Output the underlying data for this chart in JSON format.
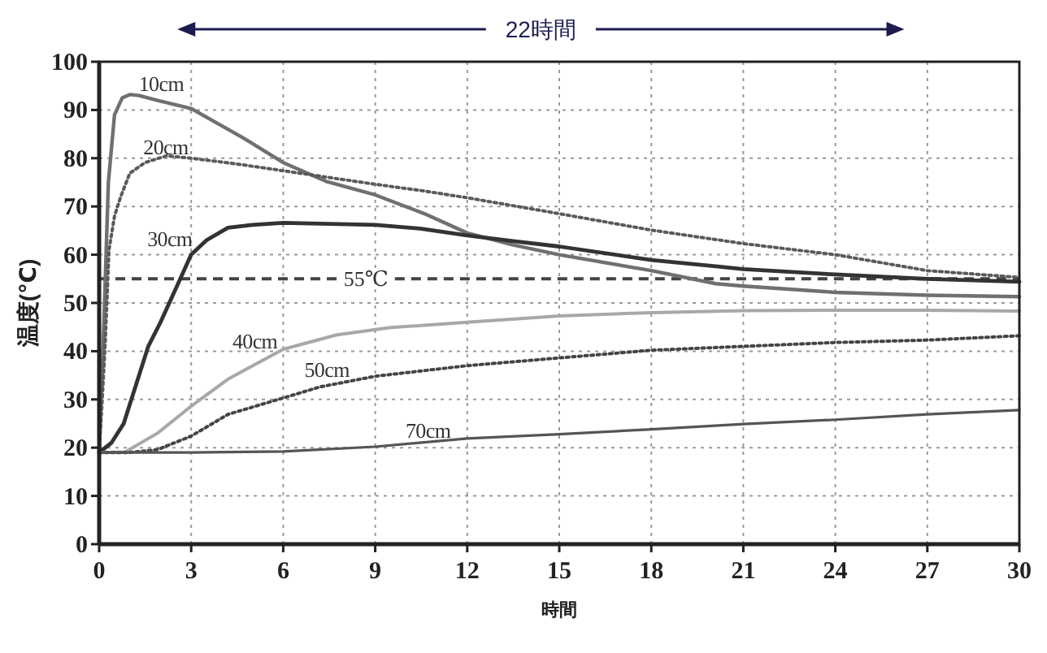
{
  "chart_data": {
    "type": "line",
    "xlabel": "時間",
    "ylabel": "温度(℃)",
    "annotations": [
      "22時間"
    ],
    "xlim": [
      0,
      30
    ],
    "ylim": [
      0,
      100
    ],
    "xticks": [
      0,
      3,
      6,
      9,
      12,
      15,
      18,
      21,
      24,
      27,
      30
    ],
    "yticks": [
      0,
      10,
      20,
      30,
      40,
      50,
      60,
      70,
      80,
      90,
      100
    ],
    "grid": true,
    "ref_lines": [
      {
        "axis": "y",
        "value": 55,
        "label": "55℃",
        "color": "#444444",
        "line_style": "dashed"
      }
    ],
    "series": [
      {
        "name": "10cm",
        "color": "#707070",
        "line_style": "solid",
        "x": [
          0,
          0.15,
          0.3,
          0.5,
          0.75,
          1.0,
          1.3,
          1.9,
          3,
          4.7,
          6,
          7.4,
          9,
          10.6,
          12,
          13.5,
          15,
          18,
          20.1,
          21,
          24,
          27,
          30
        ],
        "values": [
          19,
          45,
          75,
          89,
          92.5,
          93.2,
          93,
          92,
          90.3,
          84.2,
          79.1,
          75.2,
          72.4,
          68.5,
          64.5,
          62,
          60,
          56.7,
          54,
          53.5,
          52.2,
          51.6,
          51.3
        ]
      },
      {
        "name": "20cm",
        "color": "#5a5a5a",
        "line_style": "dotted",
        "x": [
          0,
          0.1,
          0.2,
          0.32,
          0.5,
          0.7,
          1.0,
          1.5,
          2.2,
          3,
          4.5,
          6,
          9,
          10.6,
          12,
          15,
          18,
          21,
          24,
          27,
          30
        ],
        "values": [
          19,
          30,
          42,
          61,
          68,
          72,
          76.9,
          79.1,
          80.5,
          80,
          78.8,
          77.4,
          74.6,
          73.2,
          71.8,
          68.5,
          65.1,
          62.3,
          60,
          56.7,
          55.3
        ]
      },
      {
        "name": "30cm",
        "color": "#333333",
        "line_style": "solid",
        "x": [
          0,
          0.4,
          0.8,
          1.2,
          1.6,
          2.0,
          2.5,
          3.0,
          3.5,
          4.2,
          5,
          6,
          9,
          10.5,
          12,
          13.5,
          15,
          18,
          20.1,
          21,
          24,
          27,
          30
        ],
        "values": [
          19,
          21,
          25,
          33,
          41,
          46,
          53,
          60,
          63,
          65.6,
          66.2,
          66.6,
          66.2,
          65.4,
          64,
          62.8,
          61.7,
          58.9,
          57.6,
          57,
          55.9,
          55,
          54.4
        ]
      },
      {
        "name": "40cm",
        "color": "#a8a8a8",
        "line_style": "solid",
        "x": [
          0,
          0.85,
          1.9,
          3,
          4.2,
          6,
          7.75,
          9.5,
          12,
          15,
          18,
          21,
          24,
          27,
          30
        ],
        "values": [
          19,
          19.1,
          23,
          28.6,
          34.2,
          40.4,
          43.4,
          44.9,
          46,
          47.3,
          48,
          48.4,
          48.5,
          48.5,
          48.3
        ]
      },
      {
        "name": "50cm",
        "color": "#444444",
        "line_style": "dotted",
        "x": [
          0,
          1,
          1.9,
          3,
          4.2,
          6,
          7.2,
          9,
          12,
          14.8,
          18,
          21,
          24,
          27,
          30
        ],
        "values": [
          19,
          19,
          19.6,
          22.4,
          26.9,
          30.3,
          32.6,
          34.8,
          37,
          38.5,
          40.2,
          41,
          41.8,
          42.3,
          43.2
        ]
      },
      {
        "name": "70cm",
        "color": "#555555",
        "line_style": "solid",
        "x": [
          0,
          3,
          6,
          9,
          12,
          15,
          18,
          21,
          24,
          27,
          30
        ],
        "values": [
          19,
          19,
          19.2,
          20.2,
          21.9,
          22.8,
          23.8,
          24.9,
          25.8,
          26.9,
          27.8
        ]
      }
    ]
  }
}
